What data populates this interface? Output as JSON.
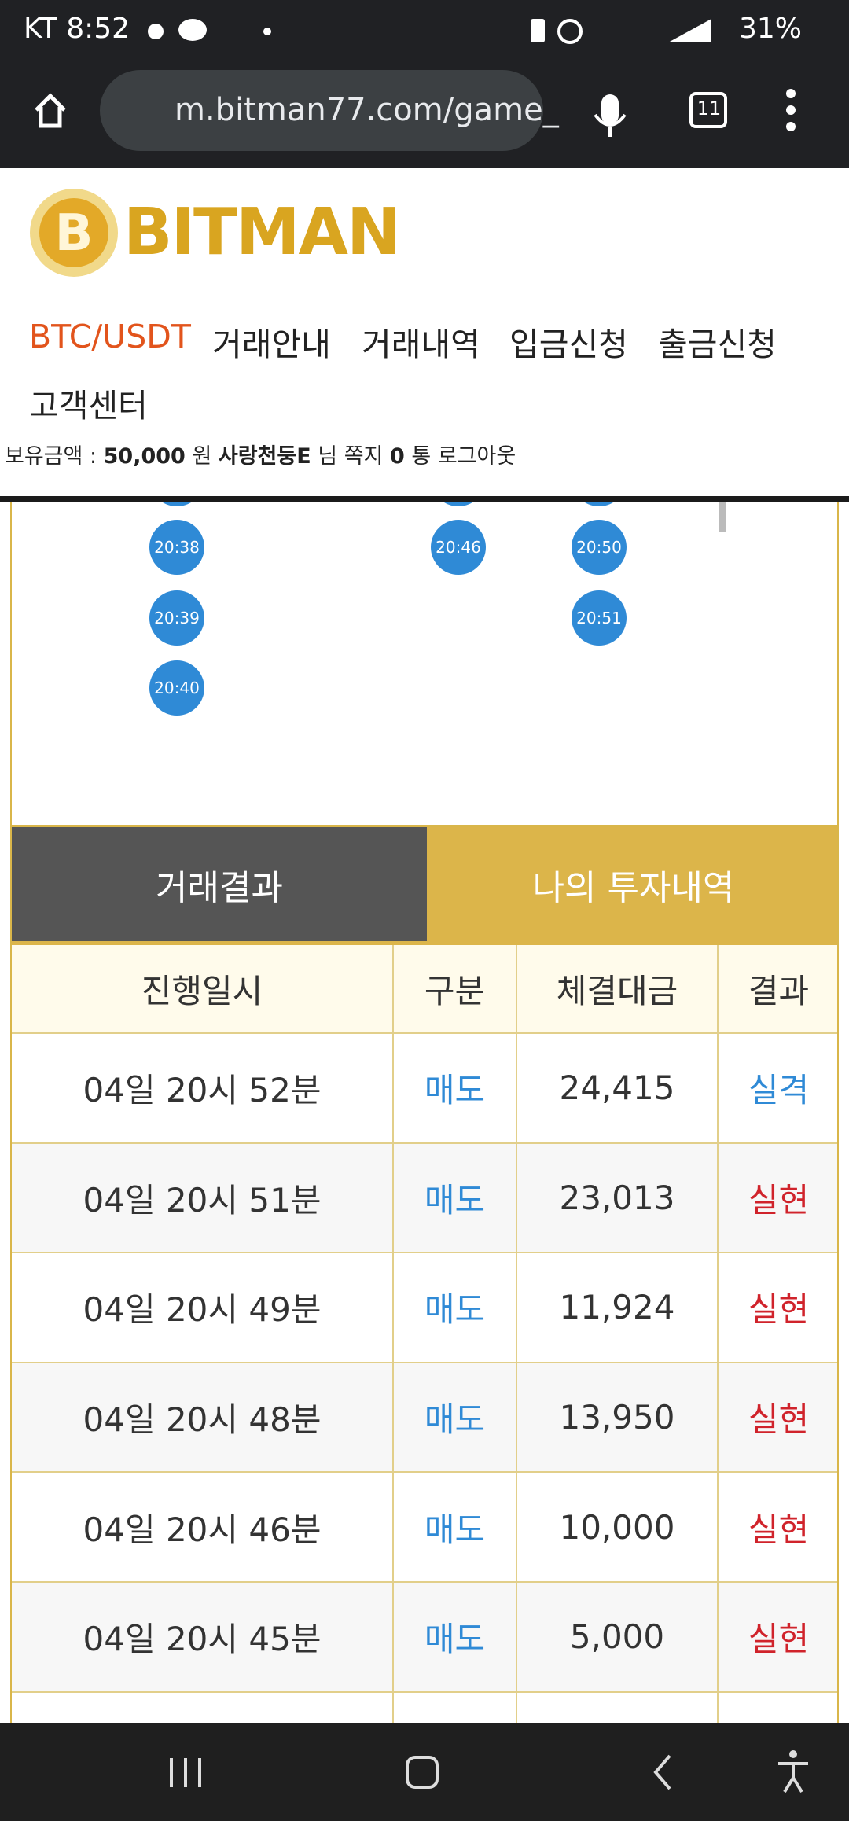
{
  "status_bar": {
    "carrier_time": "KT 8:52",
    "battery": "31%"
  },
  "browser": {
    "url": "m.bitman77.com/game_",
    "tab_count": "11"
  },
  "header": {
    "logo": "BITMAN",
    "nav": [
      "BTC/USDT",
      "거래안내",
      "거래내역",
      "입금신청",
      "출금신청",
      "고객센터"
    ],
    "user_info": {
      "balance_label": "보유금액 :",
      "balance": "50,000",
      "balance_unit": "원",
      "username": "사랑천둥E",
      "honorific": "님",
      "message_label": "쪽지",
      "message_count": "0",
      "message_unit": "통",
      "logout": "로그아웃"
    }
  },
  "schedule": [
    [
      "20:38",
      "20:39",
      "20:40"
    ],
    [],
    [
      "20:46"
    ],
    [
      "20:50",
      "20:51"
    ]
  ],
  "tabs": [
    "거래결과",
    "나의 투자내역"
  ],
  "table": {
    "columns": [
      "진행일시",
      "구분",
      "체결대금",
      "결과"
    ],
    "rows": [
      [
        "04일 20시 52분",
        "매도",
        "24,415",
        "실격"
      ],
      [
        "04일 20시 51분",
        "매도",
        "23,013",
        "실현"
      ],
      [
        "04일 20시 49분",
        "매도",
        "11,924",
        "실현"
      ],
      [
        "04일 20시 48분",
        "매도",
        "13,950",
        "실현"
      ],
      [
        "04일 20시 46분",
        "매도",
        "10,000",
        "실현"
      ],
      [
        "04일 20시 45분",
        "매도",
        "5,000",
        "실현"
      ]
    ],
    "result_colors": [
      "#2f8ad6",
      "#d0232b",
      "#d0232b",
      "#d0232b",
      "#d0232b",
      "#d0232b"
    ],
    "type_color": "#2f8ad6"
  }
}
